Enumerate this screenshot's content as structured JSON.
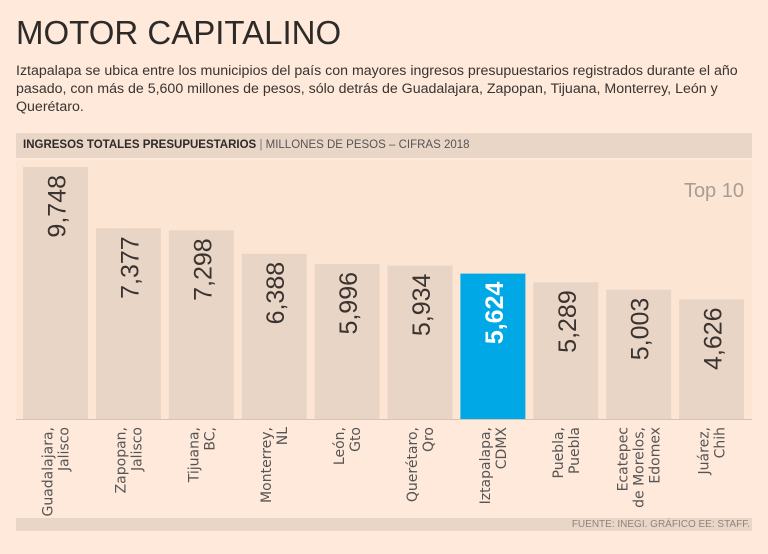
{
  "title": "MOTOR CAPITALINO",
  "subtitle": "Iztapalapa se ubica entre los municipios del país con mayores ingresos presupuestarios registrados durante el año pasado, con más de 5,600 millones de pesos, sólo detrás de Guadalajara, Zapopan, Tijuana, Monterrey, León y Querétaro.",
  "band": {
    "bold": "INGRESOS TOTALES PRESUPUESTARIOS",
    "unit": "MILLONES DE PESOS – CIFRAS 2018"
  },
  "badge": "Top 10",
  "source": "FUENTE: INEGI. GRÁFICO EE: STAFF.",
  "colors": {
    "bar": "#e8d5c6",
    "highlight": "#00a9e6",
    "background": "#fee9da"
  },
  "chart_data": {
    "type": "bar",
    "categories": [
      [
        "Guadalajara,",
        "Jalisco"
      ],
      [
        "Zapopan,",
        "Jalisco"
      ],
      [
        "Tijuana,",
        "BC,"
      ],
      [
        "Monterrey,",
        "NL"
      ],
      [
        "León,",
        "Gto"
      ],
      [
        "Querétaro,",
        "Qro"
      ],
      [
        "Iztapalapa,",
        "CDMX"
      ],
      [
        "Puebla,",
        "Puebla"
      ],
      [
        "Ecatepec",
        "de Morelos,",
        "Edomex"
      ],
      [
        "Juárez,",
        "Chih"
      ]
    ],
    "values": [
      9748,
      7377,
      7298,
      6388,
      5996,
      5934,
      5624,
      5289,
      5003,
      4626
    ],
    "labels": [
      "9,748",
      "7,377",
      "7,298",
      "6,388",
      "5,996",
      "5,934",
      "5,624",
      "5,289",
      "5,003",
      "4,626"
    ],
    "highlight_index": 6,
    "ylim": [
      0,
      9748
    ]
  }
}
